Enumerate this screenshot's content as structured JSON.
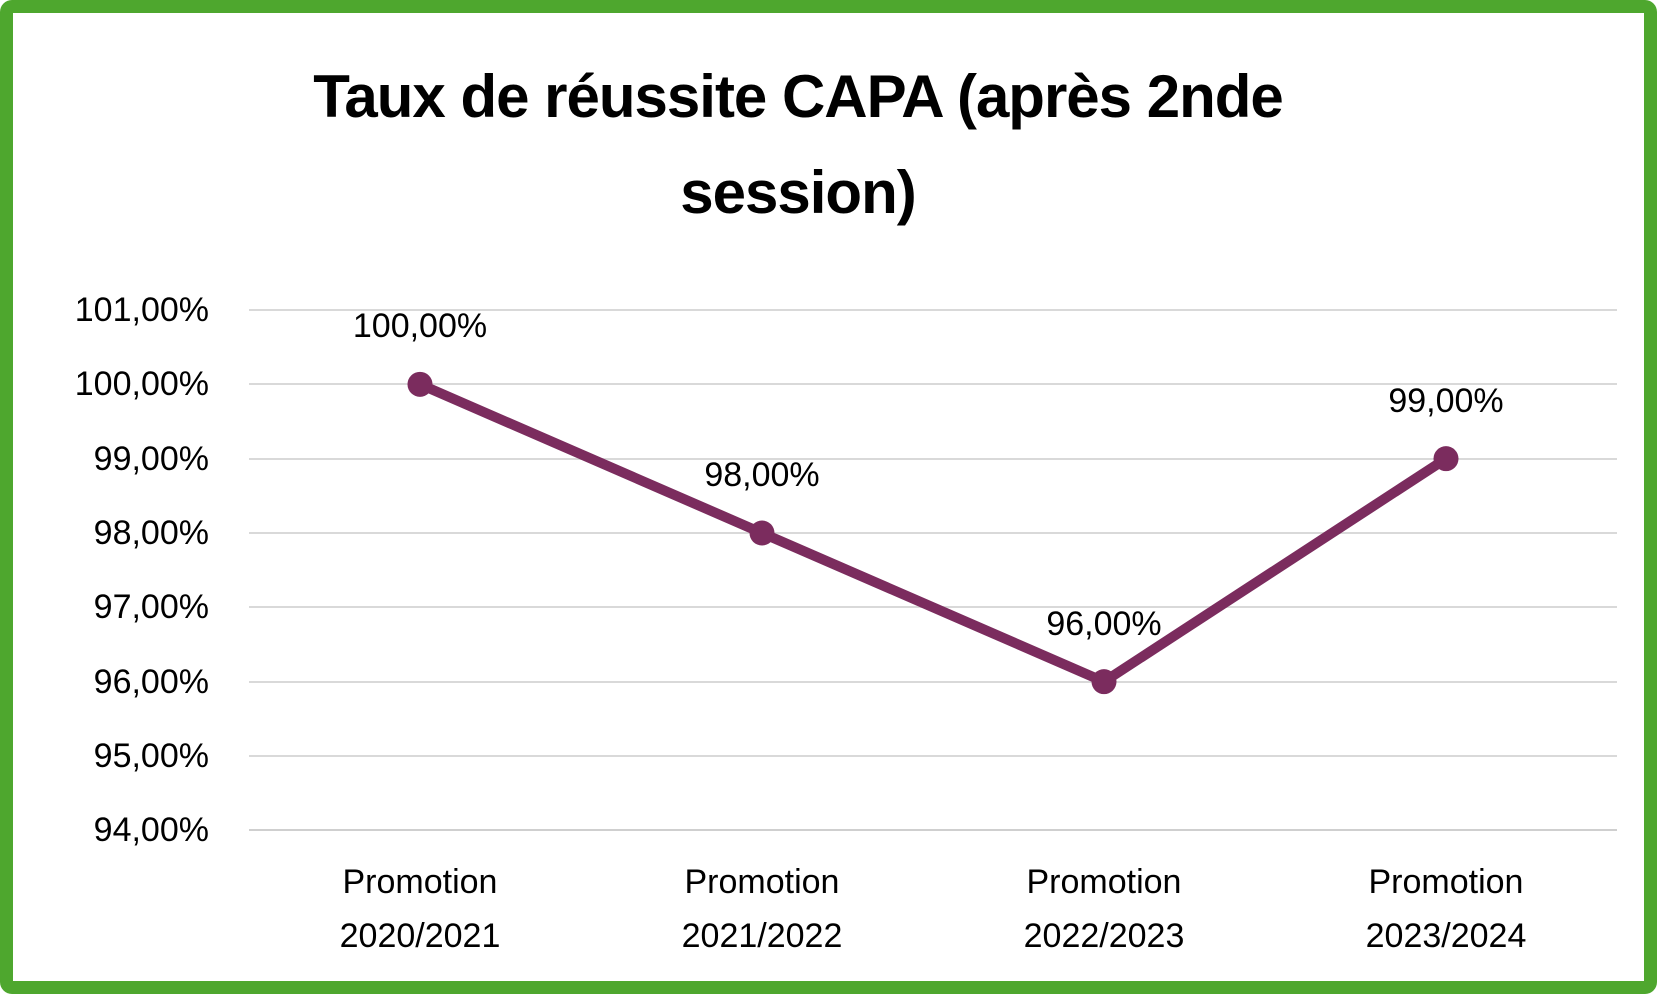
{
  "header": {
    "title_line1": "Taux de réussite CAPA (après 2nde",
    "title_line2": "session)"
  },
  "chart_data": {
    "type": "line",
    "title": "Taux de réussite CAPA (après 2nde session)",
    "categories": [
      "Promotion 2020/2021",
      "Promotion 2021/2022",
      "Promotion 2022/2023",
      "Promotion 2023/2024"
    ],
    "values": [
      100.0,
      98.0,
      96.0,
      99.0
    ],
    "data_labels": [
      "100,00%",
      "98,00%",
      "96,00%",
      "99,00%"
    ],
    "ytick_labels": [
      "101,00%",
      "100,00%",
      "99,00%",
      "98,00%",
      "97,00%",
      "96,00%",
      "95,00%",
      "94,00%"
    ],
    "ytick_values": [
      101,
      100,
      99,
      98,
      97,
      96,
      95,
      94
    ],
    "ylim": [
      94,
      101
    ],
    "xlabel": "",
    "ylabel": "",
    "grid": true,
    "legend": "none",
    "line_color": "#7B2C5E",
    "marker_color": "#7B2C5E",
    "gridline_color": "#D9D9D9",
    "frame_border_color": "#4EA72E",
    "title_color": "#000000",
    "label_color": "#000000"
  }
}
